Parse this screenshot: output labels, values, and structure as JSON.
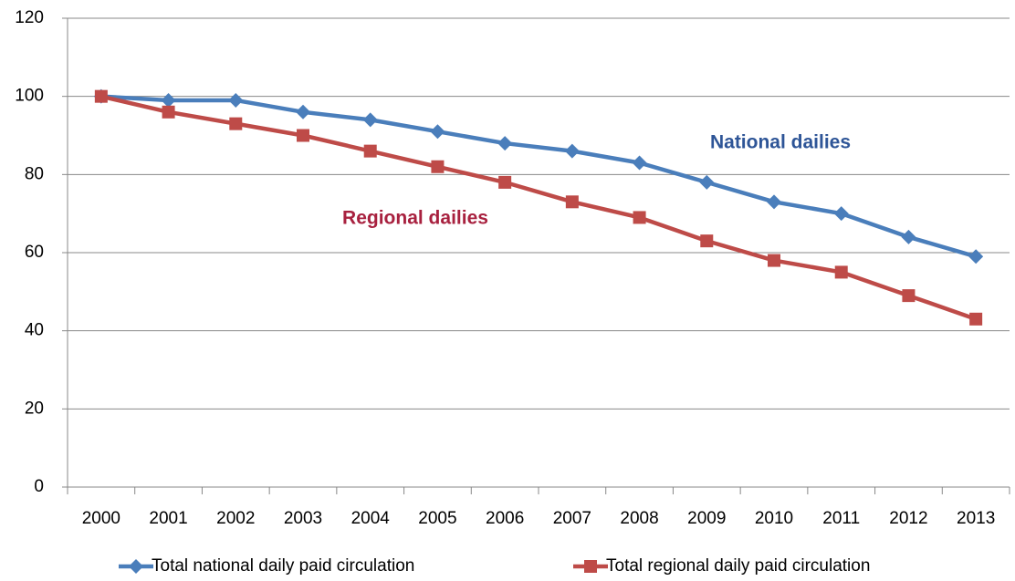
{
  "chart_data": {
    "type": "line",
    "categories": [
      "2000",
      "2001",
      "2002",
      "2003",
      "2004",
      "2005",
      "2006",
      "2007",
      "2008",
      "2009",
      "2010",
      "2011",
      "2012",
      "2013"
    ],
    "series": [
      {
        "name": "Total national daily paid circulation",
        "color": "#4a7ebb",
        "marker": "diamond",
        "values": [
          100,
          99,
          99,
          96,
          94,
          91,
          88,
          86,
          83,
          78,
          73,
          70,
          64,
          59
        ]
      },
      {
        "name": "Total regional daily paid circulation",
        "color": "#be4b48",
        "marker": "square",
        "values": [
          100,
          96,
          93,
          90,
          86,
          82,
          78,
          73,
          69,
          63,
          58,
          55,
          49,
          43
        ]
      }
    ],
    "annotations": [
      {
        "text": "National dailies",
        "color": "#2e5597"
      },
      {
        "text": "Regional dailies",
        "color": "#a8213f"
      }
    ],
    "ylim": [
      0,
      120
    ],
    "yticks": [
      0,
      20,
      40,
      60,
      80,
      100,
      120
    ],
    "grid": true,
    "legend": "bottom"
  }
}
